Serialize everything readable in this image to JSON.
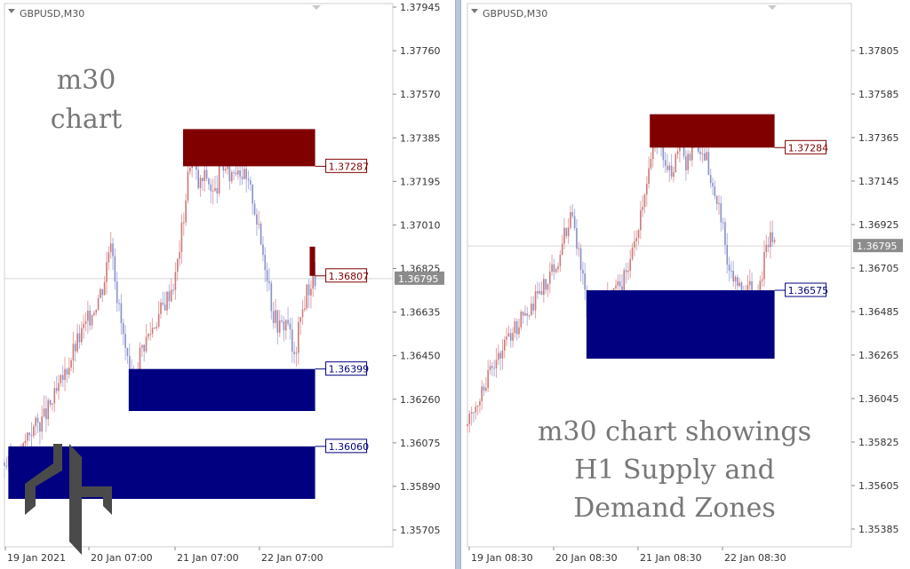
{
  "chart_data": [
    {
      "type": "candlestick",
      "symbol": "GBPUSD,M30",
      "annotation_lines": [
        "m30",
        "chart"
      ],
      "yticks": [
        "1.37945",
        "1.37760",
        "1.37570",
        "1.37385",
        "1.37195",
        "1.37010",
        "1.36825",
        "1.36635",
        "1.36450",
        "1.36260",
        "1.36075",
        "1.35890",
        "1.35705"
      ],
      "ylim": [
        1.3562,
        1.38
      ],
      "xticks": [
        "19 Jan 2021",
        "20 Jan 07:00",
        "21 Jan 07:00",
        "22 Jan 07:00"
      ],
      "current_price": "1.36795",
      "current_price_value": 1.36795,
      "zones": [
        {
          "type": "supply",
          "top": 1.3745,
          "bottom": 1.37287,
          "label": "1.37287",
          "color": "#800000",
          "x_start": 0.46,
          "x_end": 0.8
        },
        {
          "type": "supply",
          "top": 1.36935,
          "bottom": 1.36807,
          "label": "1.36807",
          "color": "#800000",
          "x_start": 0.786,
          "x_end": 0.8
        },
        {
          "type": "demand",
          "top": 1.36399,
          "bottom": 1.36215,
          "label": "1.36399",
          "color": "#000080",
          "x_start": 0.32,
          "x_end": 0.8
        },
        {
          "type": "demand",
          "top": 1.3606,
          "bottom": 1.3583,
          "label": "1.36060",
          "color": "#000080",
          "x_start": 0.01,
          "x_end": 0.8
        }
      ],
      "price_path": [
        [
          0.0,
          1.3599
        ],
        [
          0.03,
          1.3595
        ],
        [
          0.06,
          1.3612
        ],
        [
          0.1,
          1.3618
        ],
        [
          0.14,
          1.3631
        ],
        [
          0.18,
          1.3649
        ],
        [
          0.22,
          1.3663
        ],
        [
          0.255,
          1.3677
        ],
        [
          0.275,
          1.37
        ],
        [
          0.29,
          1.3672
        ],
        [
          0.305,
          1.3655
        ],
        [
          0.32,
          1.3638
        ],
        [
          0.33,
          1.363
        ],
        [
          0.35,
          1.3648
        ],
        [
          0.38,
          1.3658
        ],
        [
          0.41,
          1.3668
        ],
        [
          0.44,
          1.368
        ],
        [
          0.46,
          1.3705
        ],
        [
          0.48,
          1.3735
        ],
        [
          0.5,
          1.372
        ],
        [
          0.52,
          1.3725
        ],
        [
          0.54,
          1.3715
        ],
        [
          0.56,
          1.373
        ],
        [
          0.58,
          1.3725
        ],
        [
          0.6,
          1.373
        ],
        [
          0.62,
          1.3723
        ],
        [
          0.64,
          1.3715
        ],
        [
          0.66,
          1.3695
        ],
        [
          0.68,
          1.368
        ],
        [
          0.69,
          1.3665
        ],
        [
          0.71,
          1.3658
        ],
        [
          0.73,
          1.3662
        ],
        [
          0.745,
          1.3642
        ],
        [
          0.76,
          1.366
        ],
        [
          0.78,
          1.3675
        ],
        [
          0.8,
          1.36795
        ]
      ]
    },
    {
      "type": "candlestick",
      "symbol": "GBPUSD,M30",
      "annotation_lines": [
        "m30 chart showings",
        "H1 Supply and",
        "Demand Zones"
      ],
      "yticks": [
        "1.37805",
        "1.37585",
        "1.37365",
        "1.37145",
        "1.36925",
        "1.36705",
        "1.36485",
        "1.36265",
        "1.36045",
        "1.35825",
        "1.35605",
        "1.35385"
      ],
      "ylim": [
        1.353,
        1.38
      ],
      "xticks": [
        "19 Jan 08:30",
        "20 Jan 08:30",
        "21 Jan 08:30",
        "22 Jan 08:30"
      ],
      "current_price": "1.36795",
      "current_price_value": 1.36795,
      "zones": [
        {
          "type": "supply",
          "top": 1.3745,
          "bottom": 1.37284,
          "label": "1.37284",
          "color": "#800000",
          "x_start": 0.475,
          "x_end": 0.8
        },
        {
          "type": "demand",
          "top": 1.36575,
          "bottom": 1.36235,
          "label": "1.36575",
          "color": "#000080",
          "x_start": 0.31,
          "x_end": 0.8
        }
      ],
      "price_path": [
        [
          0.0,
          1.359
        ],
        [
          0.04,
          1.361
        ],
        [
          0.08,
          1.3625
        ],
        [
          0.12,
          1.3638
        ],
        [
          0.16,
          1.3648
        ],
        [
          0.2,
          1.366
        ],
        [
          0.24,
          1.3675
        ],
        [
          0.26,
          1.369
        ],
        [
          0.275,
          1.3695
        ],
        [
          0.29,
          1.3675
        ],
        [
          0.305,
          1.366
        ],
        [
          0.315,
          1.364
        ],
        [
          0.33,
          1.3645
        ],
        [
          0.36,
          1.3652
        ],
        [
          0.4,
          1.366
        ],
        [
          0.43,
          1.3675
        ],
        [
          0.45,
          1.3695
        ],
        [
          0.47,
          1.3715
        ],
        [
          0.49,
          1.373
        ],
        [
          0.51,
          1.3725
        ],
        [
          0.53,
          1.3715
        ],
        [
          0.55,
          1.373
        ],
        [
          0.57,
          1.372
        ],
        [
          0.6,
          1.373
        ],
        [
          0.62,
          1.3725
        ],
        [
          0.64,
          1.371
        ],
        [
          0.66,
          1.3695
        ],
        [
          0.68,
          1.367
        ],
        [
          0.7,
          1.3662
        ],
        [
          0.72,
          1.3655
        ],
        [
          0.735,
          1.3665
        ],
        [
          0.75,
          1.364
        ],
        [
          0.77,
          1.367
        ],
        [
          0.79,
          1.3685
        ],
        [
          0.8,
          1.36795
        ]
      ]
    }
  ]
}
